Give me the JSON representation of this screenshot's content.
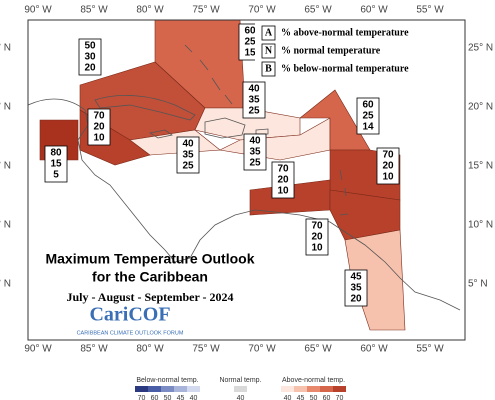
{
  "map": {
    "title": [
      "Maximum Temperature Outlook",
      "for the Caribbean"
    ],
    "subtitle": "July - August - September - 2024",
    "logo": {
      "name": "CariCOF",
      "tagline": "CARIBBEAN CLIMATE OUTLOOK FORUM"
    },
    "key": [
      {
        "letter": "A",
        "text": "% above-normal temperature"
      },
      {
        "letter": "N",
        "text": "% normal temperature"
      },
      {
        "letter": "B",
        "text": "% below-normal temperature"
      }
    ],
    "longitudes": [
      "90° W",
      "85° W",
      "80° W",
      "75° W",
      "70° W",
      "65° W",
      "60° W",
      "55° W"
    ],
    "latitudes": [
      "25° N",
      "20° N",
      "15° N",
      "10° N",
      "5° N"
    ],
    "regions": [
      {
        "values": [
          60,
          25,
          15
        ],
        "color": "#d5664c"
      },
      {
        "values": [
          50,
          30,
          20
        ],
        "color": "#c24f38"
      },
      {
        "values": [
          80,
          15,
          5
        ],
        "color": "#a9321f"
      },
      {
        "values": [
          70,
          20,
          10
        ],
        "color": "#b8412b"
      },
      {
        "values": [
          40,
          35,
          25
        ],
        "color": "#fde6dd"
      },
      {
        "values": [
          40,
          35,
          25
        ],
        "color": "#fde6dd"
      },
      {
        "values": [
          40,
          35,
          25
        ],
        "color": "#fde6dd"
      },
      {
        "values": [
          60,
          25,
          14
        ],
        "color": "#d5664c"
      },
      {
        "values": [
          70,
          20,
          10
        ],
        "color": "#b8412b"
      },
      {
        "values": [
          70,
          20,
          10
        ],
        "color": "#b8412b"
      },
      {
        "values": [
          70,
          20,
          10
        ],
        "color": "#b8412b"
      },
      {
        "values": [
          45,
          35,
          20
        ],
        "color": "#f7c2ad"
      }
    ],
    "legend": {
      "below": {
        "label": "Below-normal temp.",
        "ticks": [
          70,
          60,
          50,
          45,
          40
        ],
        "colors": [
          "#2b3a80",
          "#4a5ea8",
          "#7b8cc4",
          "#a8b4da",
          "#d3d9ee"
        ]
      },
      "normal": {
        "label": "Normal temp.",
        "ticks": [
          40
        ],
        "color": "#d9d9d9"
      },
      "above": {
        "label": "Above-normal temp.",
        "ticks": [
          40,
          45,
          50,
          60,
          70
        ],
        "colors": [
          "#fde6dd",
          "#f7c2ad",
          "#e8896e",
          "#d5664c",
          "#b8412b"
        ]
      }
    }
  }
}
